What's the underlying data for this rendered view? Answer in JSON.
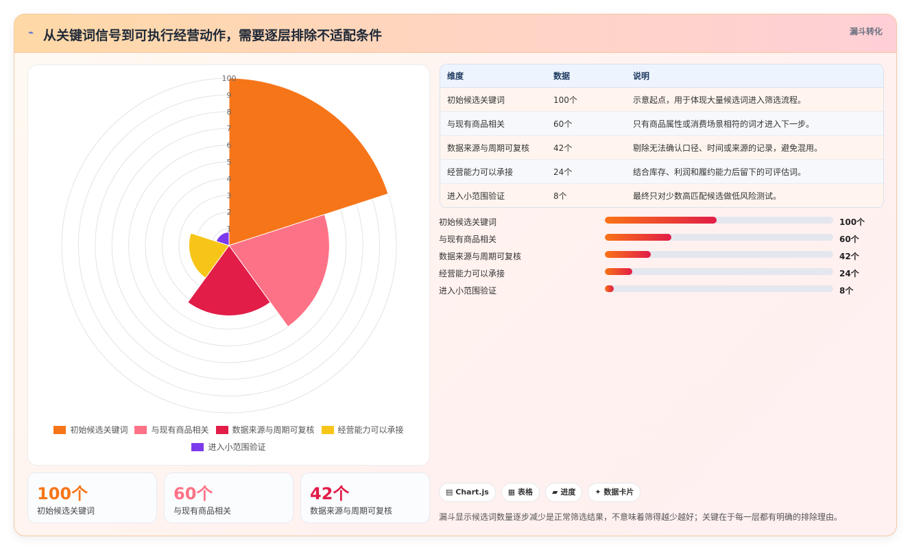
{
  "header": {
    "icon": "⌁",
    "title": "从关键词信号到可执行经营动作，需要逐层排除不适配条件",
    "tag": "漏斗转化"
  },
  "chart_data": {
    "type": "polarArea",
    "categories": [
      "初始候选关键词",
      "与现有商品相关",
      "数据来源与周期可复核",
      "经营能力可以承接",
      "进入小范围验证"
    ],
    "values": [
      100,
      60,
      42,
      24,
      8
    ],
    "colors": [
      "#f77519",
      "#fd7286",
      "#e11d48",
      "#f6c518",
      "#7c3aed"
    ],
    "r_ticks": [
      "1",
      "2",
      "3",
      "4",
      "5",
      "6",
      "7",
      "8",
      "9",
      "100"
    ],
    "rlim": [
      0,
      100
    ],
    "legend_position": "bottom"
  },
  "table": {
    "headers": [
      "维度",
      "数据",
      "说明"
    ],
    "rows": [
      [
        "初始候选关键词",
        "100个",
        "示意起点，用于体现大量候选词进入筛选流程。"
      ],
      [
        "与现有商品相关",
        "60个",
        "只有商品属性或消费场景相符的词才进入下一步。"
      ],
      [
        "数据来源与周期可复核",
        "42个",
        "剔除无法确认口径、时间或来源的记录，避免混用。"
      ],
      [
        "经营能力可以承接",
        "24个",
        "结合库存、利润和履约能力后留下的可评估词。"
      ],
      [
        "进入小范围验证",
        "8个",
        "最终只对少数高匹配候选做低风险测试。"
      ]
    ]
  },
  "progress": [
    {
      "label": "初始候选关键词",
      "value": "100个",
      "fraction": 0.49
    },
    {
      "label": "与现有商品相关",
      "value": "60个",
      "fraction": 0.29
    },
    {
      "label": "数据来源与周期可复核",
      "value": "42个",
      "fraction": 0.2
    },
    {
      "label": "经营能力可以承接",
      "value": "24个",
      "fraction": 0.12
    },
    {
      "label": "进入小范围验证",
      "value": "8个",
      "fraction": 0.04
    }
  ],
  "stats": [
    {
      "num": "100个",
      "label": "初始候选关键词",
      "color": "#f77519"
    },
    {
      "num": "60个",
      "label": "与现有商品相关",
      "color": "#fd7286"
    },
    {
      "num": "42个",
      "label": "数据来源与周期可复核",
      "color": "#e11d48"
    }
  ],
  "chips": [
    {
      "icon": "▤",
      "label": "Chart.js"
    },
    {
      "icon": "▦",
      "label": "表格"
    },
    {
      "icon": "▰",
      "label": "进度"
    },
    {
      "icon": "✦",
      "label": "数据卡片"
    }
  ],
  "note": "漏斗显示候选词数量逐步减少是正常筛选结果，不意味着筛得越少越好；关键在于每一层都有明确的排除理由。"
}
